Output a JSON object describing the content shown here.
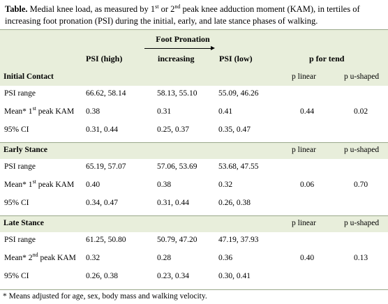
{
  "caption": {
    "label": "Table.",
    "part1": " Medial knee load, as measured by 1",
    "sup1": "st",
    "part2": " or 2",
    "sup2": "nd",
    "part3": " peak knee adduction moment (KAM), in tertiles of increasing foot pronation (PSI) during the initial, early, and late stance phases of walking."
  },
  "header": {
    "group_label": "Foot Pronation",
    "col1": "PSI (high)",
    "col2": "increasing",
    "col3": "PSI (low)",
    "col4": "p for tend"
  },
  "sections": [
    {
      "title": "Initial Contact",
      "p_linear_label": "p linear",
      "p_u_label": "p u-shaped",
      "rows": [
        {
          "label": "PSI range",
          "sup": "",
          "label_tail": "",
          "c1": "66.62, 58.14",
          "c2": "58.13, 55.10",
          "c3": "55.09, 46.26",
          "pl": "",
          "pu": ""
        },
        {
          "label": "Mean* 1",
          "sup": "st",
          "label_tail": " peak KAM",
          "c1": "0.38",
          "c2": "0.31",
          "c3": "0.41",
          "pl": "0.44",
          "pu": "0.02"
        },
        {
          "label": "95% CI",
          "sup": "",
          "label_tail": "",
          "c1": "0.31, 0.44",
          "c2": "0.25, 0.37",
          "c3": "0.35, 0.47",
          "pl": "",
          "pu": ""
        }
      ]
    },
    {
      "title": "Early Stance",
      "p_linear_label": "p linear",
      "p_u_label": "p u-shaped",
      "rows": [
        {
          "label": "PSI range",
          "sup": "",
          "label_tail": "",
          "c1": "65.19, 57.07",
          "c2": "57.06, 53.69",
          "c3": "53.68, 47.55",
          "pl": "",
          "pu": ""
        },
        {
          "label": "Mean* 1",
          "sup": "st",
          "label_tail": " peak KAM",
          "c1": "0.40",
          "c2": "0.38",
          "c3": "0.32",
          "pl": "0.06",
          "pu": "0.70"
        },
        {
          "label": "95% CI",
          "sup": "",
          "label_tail": "",
          "c1": "0.34, 0.47",
          "c2": "0.31, 0.44",
          "c3": "0.26, 0.38",
          "pl": "",
          "pu": ""
        }
      ]
    },
    {
      "title": "Late Stance",
      "p_linear_label": "p linear",
      "p_u_label": "p u-shaped",
      "rows": [
        {
          "label": "PSI range",
          "sup": "",
          "label_tail": "",
          "c1": "61.25, 50.80",
          "c2": "50.79, 47.20",
          "c3": "47.19, 37.93",
          "pl": "",
          "pu": ""
        },
        {
          "label": "Mean* 2",
          "sup": "nd",
          "label_tail": " peak KAM",
          "c1": "0.32",
          "c2": "0.28",
          "c3": "0.36",
          "pl": "0.40",
          "pu": "0.13"
        },
        {
          "label": "95% CI",
          "sup": "",
          "label_tail": "",
          "c1": "0.26, 0.38",
          "c2": "0.23, 0.34",
          "c3": "0.30, 0.41",
          "pl": "",
          "pu": ""
        }
      ]
    }
  ],
  "footnote": "* Means adjusted for age, sex, body mass and walking velocity."
}
